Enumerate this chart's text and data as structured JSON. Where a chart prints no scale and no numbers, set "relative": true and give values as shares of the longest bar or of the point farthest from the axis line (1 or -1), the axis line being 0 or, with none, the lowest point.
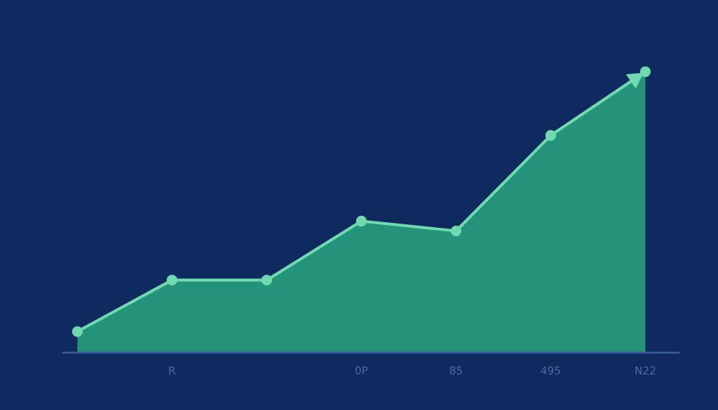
{
  "chart_data": {
    "type": "area",
    "relative": true,
    "categories": [
      null,
      "R",
      null,
      "0P",
      "85",
      "495",
      "N22"
    ],
    "series": [
      {
        "color": "#24937a",
        "values": [
          0.075,
          0.258,
          0.258,
          0.468,
          0.433,
          0.773,
          1.0
        ]
      }
    ],
    "marker": "circle",
    "line_style": "solid"
  }
}
